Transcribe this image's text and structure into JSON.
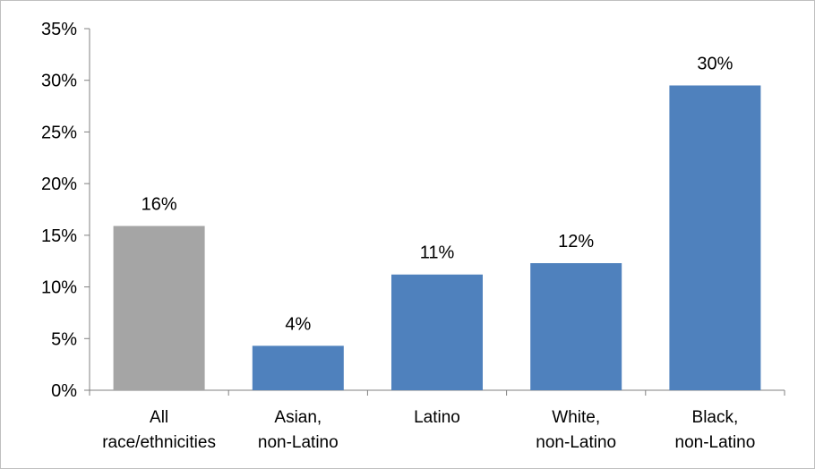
{
  "chart_data": {
    "type": "bar",
    "title": "",
    "xlabel": "",
    "ylabel": "",
    "ylim": [
      0,
      35
    ],
    "y_ticks": [
      "0%",
      "5%",
      "10%",
      "15%",
      "20%",
      "25%",
      "30%",
      "35%"
    ],
    "y_tick_values": [
      0,
      5,
      10,
      15,
      20,
      25,
      30,
      35
    ],
    "grid": false,
    "legend": "none",
    "categories": [
      [
        "All",
        "race/ethnicities"
      ],
      [
        "Asian,",
        "non-Latino"
      ],
      [
        "Latino"
      ],
      [
        "White,",
        "non-Latino"
      ],
      [
        "Black,",
        "non-Latino"
      ]
    ],
    "values": [
      15.9,
      4.3,
      11.2,
      12.3,
      29.5
    ],
    "data_labels": [
      "16%",
      "4%",
      "11%",
      "12%",
      "30%"
    ],
    "colors": [
      "#a5a5a5",
      "#4f81bd",
      "#4f81bd",
      "#4f81bd",
      "#4f81bd"
    ],
    "axis_color": "#808080"
  }
}
